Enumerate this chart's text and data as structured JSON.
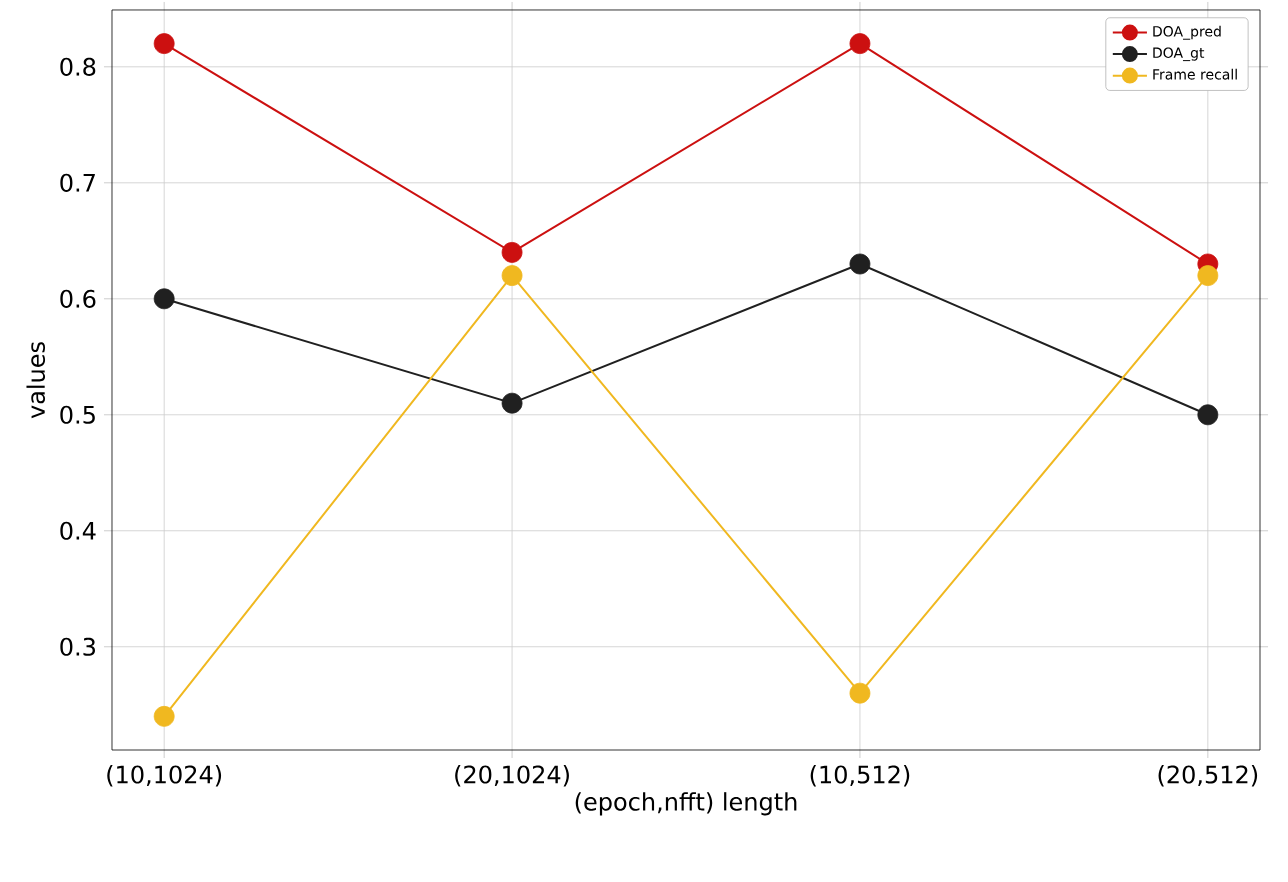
{
  "chart_data": {
    "type": "line",
    "xlabel": "(epoch,nfft) length",
    "ylabel": "values",
    "categories": [
      "(10,1024)",
      "(20,1024)",
      "(10,512)",
      "(20,512)"
    ],
    "series": [
      {
        "name": "DOA_pred",
        "color": "#cc1010",
        "values": [
          0.82,
          0.64,
          0.82,
          0.63
        ]
      },
      {
        "name": "DOA_gt",
        "color": "#202020",
        "values": [
          0.6,
          0.51,
          0.63,
          0.5
        ]
      },
      {
        "name": "Frame recall",
        "color": "#f0b820",
        "values": [
          0.24,
          0.62,
          0.26,
          0.62
        ]
      }
    ],
    "ylim": [
      0.211,
      0.849
    ],
    "yticks": [
      0.3,
      0.4,
      0.5,
      0.6,
      0.7,
      0.8
    ],
    "grid": true,
    "legend": "top right",
    "marker": "circle",
    "line_style": "solid"
  }
}
